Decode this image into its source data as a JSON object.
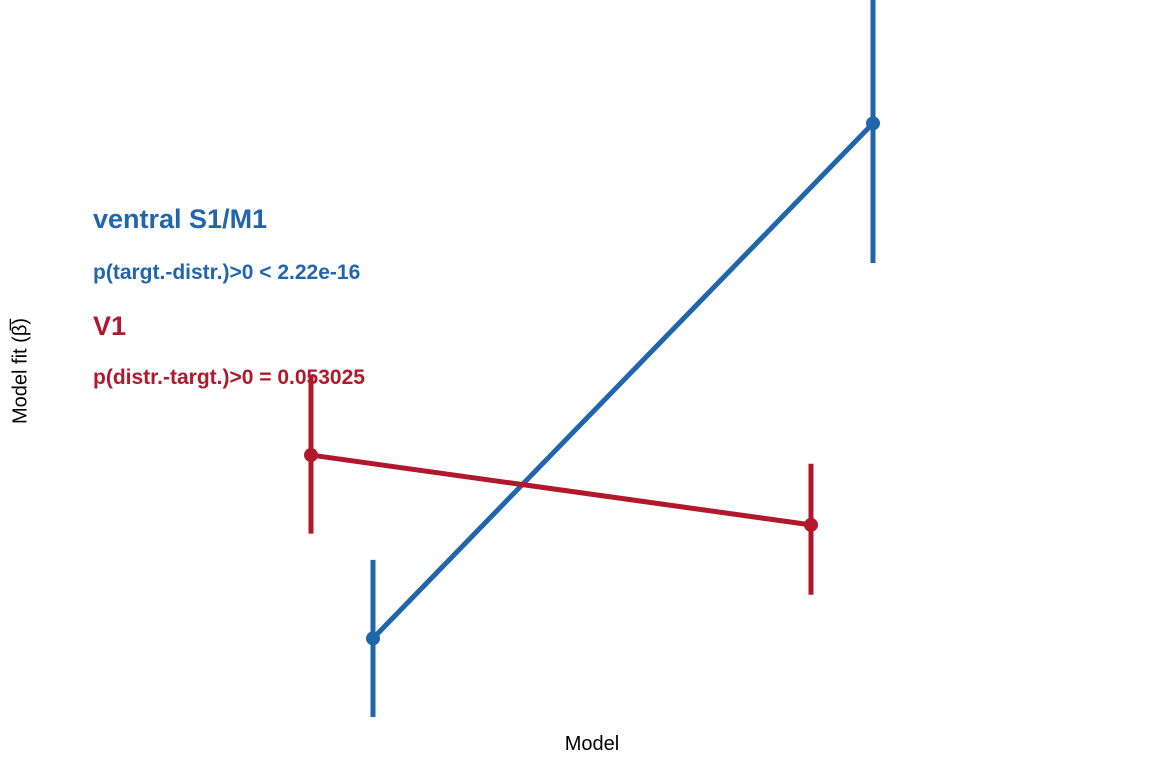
{
  "chart_data": {
    "type": "line",
    "title": "",
    "xlabel": "Model",
    "ylabel": "Model fit (β̅)",
    "ylim": [
      0,
      1
    ],
    "grid": false,
    "legend": "none",
    "series": [
      {
        "name": "ventral S1/M1",
        "color": "#2166ac",
        "annotation": "p(targt.-distr.)>0  < 2.22e-16",
        "points": [
          {
            "x": 1,
            "y": 0.07,
            "lo": -0.02,
            "hi": 0.16
          },
          {
            "x": 2,
            "y": 0.66,
            "lo": 0.5,
            "hi": 0.83
          }
        ]
      },
      {
        "name": "V1",
        "color": "#b2182b",
        "annotation": "p(distr.-targt.)>0 = 0.053025",
        "points": [
          {
            "x": 1,
            "y": 0.28,
            "lo": 0.19,
            "hi": 0.37
          },
          {
            "x": 2,
            "y": 0.2,
            "lo": 0.12,
            "hi": 0.27
          }
        ]
      }
    ]
  }
}
